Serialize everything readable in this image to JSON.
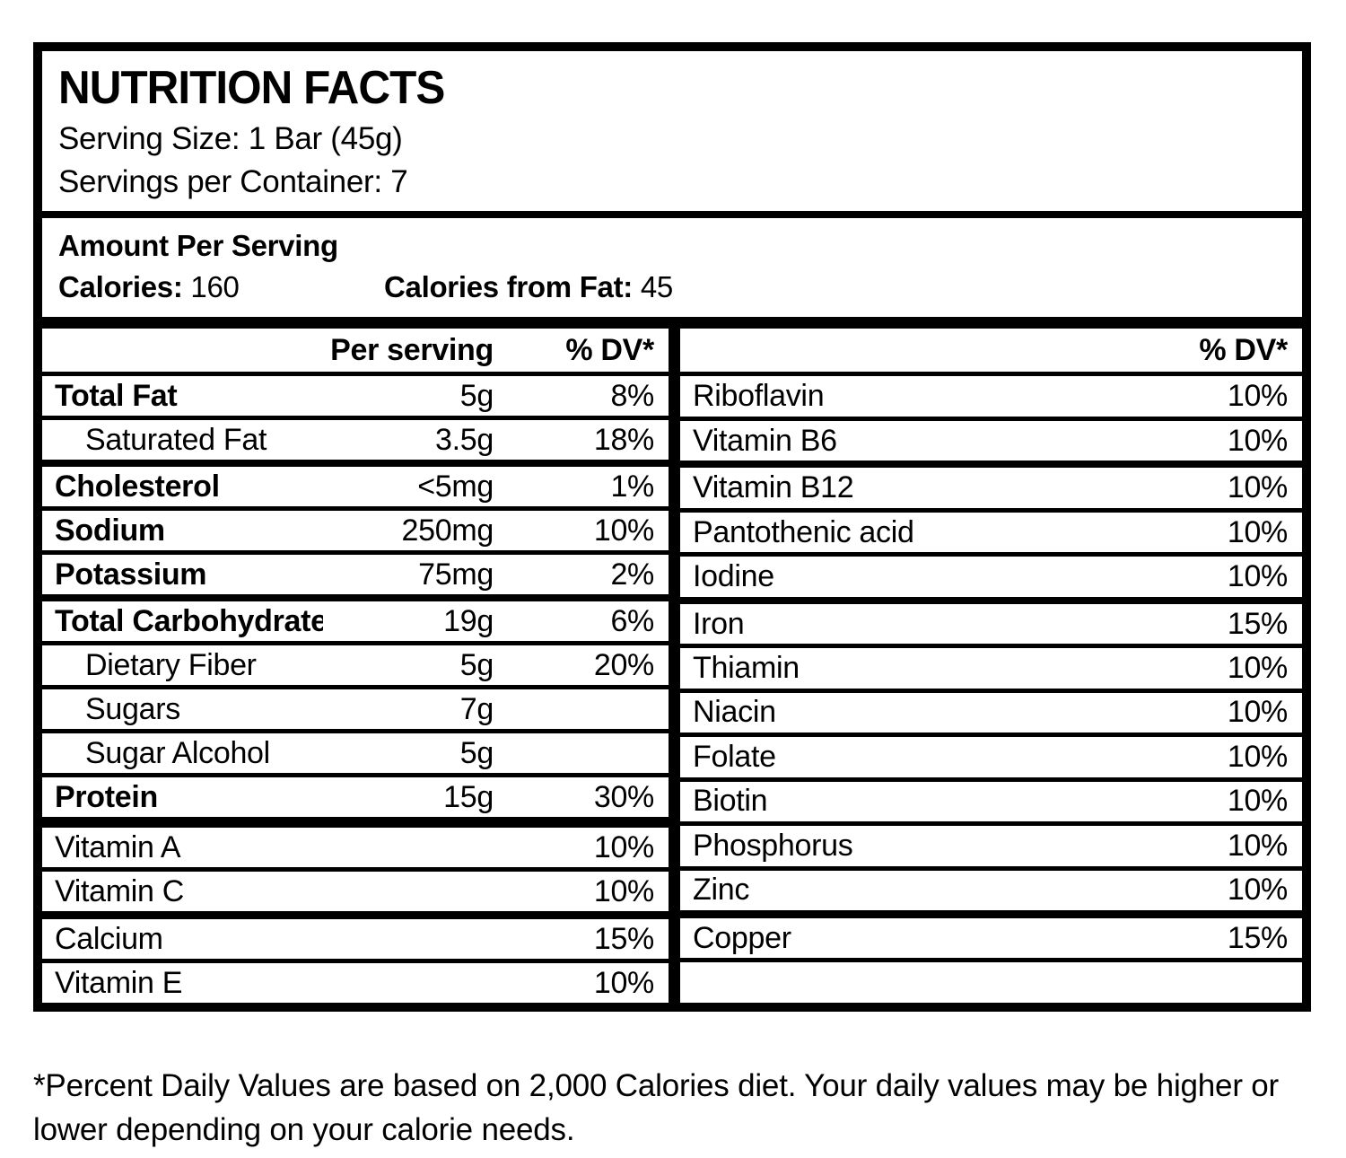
{
  "nutrition_label": {
    "title": "NUTRITION FACTS",
    "serving_size": "Serving Size: 1 Bar (45g)",
    "servings_per_container": "Servings per Container: 7",
    "amount_per_serving": "Amount Per Serving",
    "calories": {
      "label": "Calories:",
      "value": "160"
    },
    "calories_from_fat": {
      "label": "Calories from Fat:",
      "value": "45"
    },
    "column_headers": {
      "per_serving": "Per serving",
      "percent_dv": "% DV*"
    },
    "left_rows": [
      {
        "name": "Total Fat",
        "amount": "5g",
        "dv": "8%"
      },
      {
        "name": "Saturated Fat",
        "amount": "3.5g",
        "dv": "18%"
      },
      {
        "name": "Cholesterol",
        "amount": "<5mg",
        "dv": "1%"
      },
      {
        "name": "Sodium",
        "amount": "250mg",
        "dv": "10%"
      },
      {
        "name": "Potassium",
        "amount": "75mg",
        "dv": "2%"
      },
      {
        "name": "Total Carbohydrates",
        "amount": "19g",
        "dv": "6%"
      },
      {
        "name": "Dietary Fiber",
        "amount": "5g",
        "dv": "20%"
      },
      {
        "name": "Sugars",
        "amount": "7g",
        "dv": ""
      },
      {
        "name": "Sugar Alcohol",
        "amount": "5g",
        "dv": ""
      },
      {
        "name": "Protein",
        "amount": "15g",
        "dv": "30%"
      },
      {
        "name": "Vitamin A",
        "amount": "",
        "dv": "10%"
      },
      {
        "name": "Vitamin C",
        "amount": "",
        "dv": "10%"
      },
      {
        "name": "Calcium",
        "amount": "",
        "dv": "15%"
      },
      {
        "name": "Vitamin E",
        "amount": "",
        "dv": "10%"
      }
    ],
    "right_rows": [
      {
        "name": "Riboflavin",
        "dv": "10%"
      },
      {
        "name": "Vitamin B6",
        "dv": "10%"
      },
      {
        "name": "Vitamin B12",
        "dv": "10%"
      },
      {
        "name": "Pantothenic acid",
        "dv": "10%"
      },
      {
        "name": "Iodine",
        "dv": "10%"
      },
      {
        "name": "Iron",
        "dv": "15%"
      },
      {
        "name": "Thiamin",
        "dv": "10%"
      },
      {
        "name": "Niacin",
        "dv": "10%"
      },
      {
        "name": "Folate",
        "dv": "10%"
      },
      {
        "name": "Biotin",
        "dv": "10%"
      },
      {
        "name": "Phosphorus",
        "dv": "10%"
      },
      {
        "name": "Zinc",
        "dv": "10%"
      },
      {
        "name": "Copper",
        "dv": "15%"
      },
      {
        "name": "",
        "dv": ""
      }
    ],
    "footnote": "*Percent Daily Values are based on 2,000 Calories diet. Your daily values may be higher or lower depending on your calorie needs.",
    "colors": {
      "ink": "#000000",
      "background": "#ffffff"
    }
  }
}
